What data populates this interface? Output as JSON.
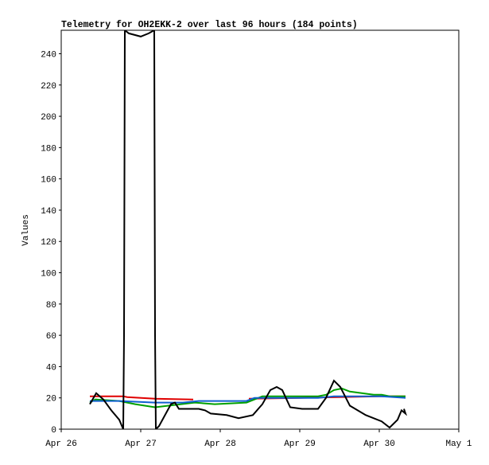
{
  "chart_data": {
    "type": "line",
    "title": "Telemetry for OH2EKK-2 over last 96 hours (184 points)",
    "y_label": "Values",
    "xlim": [
      26,
      31
    ],
    "xticks": [
      {
        "value": 26,
        "label": "Apr 26"
      },
      {
        "value": 27,
        "label": "Apr 27"
      },
      {
        "value": 28,
        "label": "Apr 28"
      },
      {
        "value": 29,
        "label": "Apr 29"
      },
      {
        "value": 30,
        "label": "Apr 30"
      },
      {
        "value": 31,
        "label": "May 1"
      }
    ],
    "ylim": [
      0,
      255
    ],
    "yticks": [
      0,
      20,
      40,
      60,
      80,
      100,
      120,
      140,
      160,
      180,
      200,
      220,
      240
    ],
    "series": [
      {
        "color": "#e00000",
        "x": [
          26.36,
          26.78,
          26.83,
          27.18,
          27.66,
          27.9,
          28.36,
          29.0,
          29.5,
          30.0,
          30.33
        ],
        "values": [
          21,
          21,
          20.5,
          19.5,
          19,
          null,
          19.5,
          20,
          20.5,
          21,
          21
        ]
      },
      {
        "color": "#00a000",
        "x": [
          26.36,
          26.43,
          26.73,
          26.93,
          27.18,
          27.68,
          27.93,
          28.33,
          28.43,
          28.53,
          29.23,
          29.33,
          29.43,
          29.53,
          29.63,
          29.93,
          30.03,
          30.13,
          30.33
        ],
        "values": [
          17,
          19,
          18,
          16,
          14,
          17,
          16,
          17,
          19,
          21,
          21,
          22,
          25,
          26,
          24,
          22,
          22,
          21,
          21
        ]
      },
      {
        "color": "#1060d0",
        "x": [
          26.36,
          26.73,
          27.18,
          27.53,
          27.73,
          28.33,
          28.43,
          29.23,
          29.43,
          30.03,
          30.33
        ],
        "values": [
          18,
          18,
          17,
          17,
          18,
          18,
          20,
          20,
          21,
          21,
          20
        ]
      },
      {
        "color": "#000000",
        "x": [
          26.36,
          26.44,
          26.53,
          26.63,
          26.73,
          26.78,
          26.79,
          26.8,
          26.85,
          27.0,
          27.1,
          27.17,
          27.18,
          27.19,
          27.23,
          27.38,
          27.43,
          27.48,
          27.73,
          27.81,
          27.88,
          28.08,
          28.23,
          28.41,
          28.53,
          28.63,
          28.71,
          28.78,
          28.88,
          29.03,
          29.23,
          29.33,
          29.43,
          29.51,
          29.63,
          29.83,
          30.03,
          30.13,
          30.23,
          30.28,
          30.33,
          30.31
        ],
        "values": [
          16,
          23,
          19,
          12,
          6,
          0,
          60,
          255,
          253,
          251,
          253,
          255,
          60,
          0,
          2,
          16,
          17,
          13,
          13,
          12,
          10,
          9,
          7,
          9,
          16,
          25,
          27,
          25,
          14,
          13,
          13,
          20,
          31,
          27,
          15,
          9,
          5,
          1,
          6,
          12,
          10,
          13
        ]
      }
    ]
  }
}
